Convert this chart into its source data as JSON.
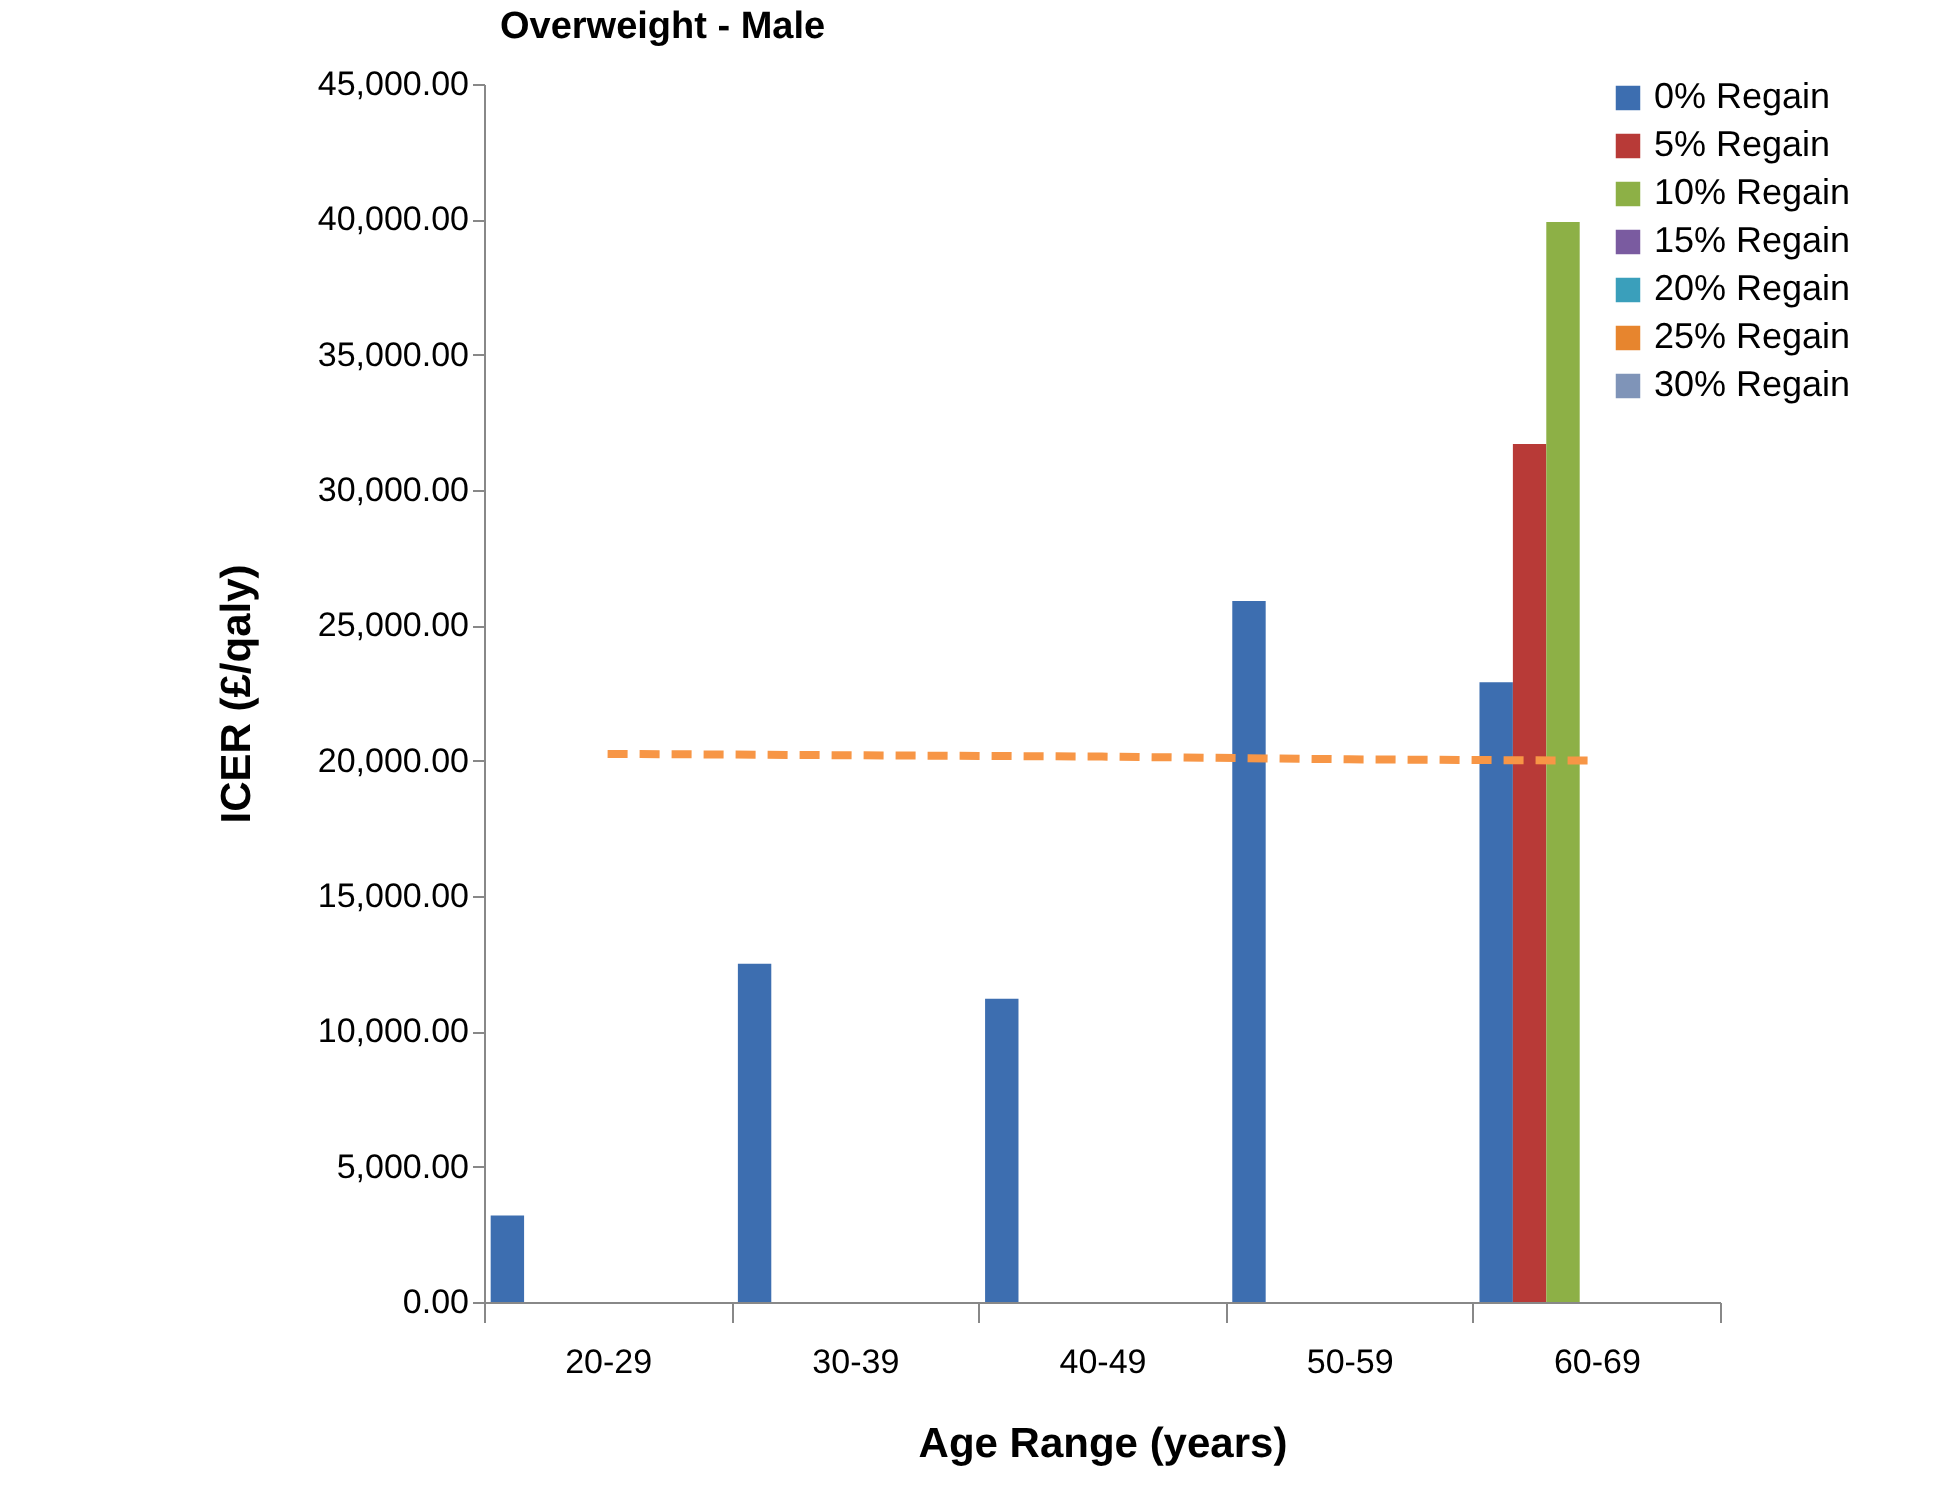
{
  "chart_data": {
    "type": "bar",
    "title": "Overweight - Male",
    "xlabel": "Age Range (years)",
    "ylabel": "ICER (£/qaly)",
    "categories": [
      "20-29",
      "30-39",
      "40-49",
      "50-59",
      "60-69"
    ],
    "series": [
      {
        "name": "0% Regain",
        "color": "#3d6eb0",
        "values": [
          3200,
          12500,
          11200,
          25900,
          22900
        ]
      },
      {
        "name": "5% Regain",
        "color": "#b83a37",
        "values": [
          null,
          null,
          null,
          null,
          31700
        ]
      },
      {
        "name": "10% Regain",
        "color": "#8db046",
        "values": [
          null,
          null,
          null,
          null,
          39900
        ]
      },
      {
        "name": "15% Regain",
        "color": "#7a5ba0",
        "values": [
          null,
          null,
          null,
          null,
          null
        ]
      },
      {
        "name": "20% Regain",
        "color": "#3a9fbb",
        "values": [
          null,
          null,
          null,
          null,
          null
        ]
      },
      {
        "name": "25% Regain",
        "color": "#e7852e",
        "values": [
          null,
          null,
          null,
          null,
          null
        ]
      },
      {
        "name": "30% Regain",
        "color": "#7f94b8",
        "values": [
          null,
          null,
          null,
          null,
          null
        ]
      },
      {
        "type": "line",
        "color": "#f79646",
        "line_style": "dashed",
        "values": [
          20250,
          20200,
          20150,
          20050,
          20000
        ]
      }
    ],
    "ylim": [
      0,
      45000
    ],
    "yticks": [
      {
        "value": 0,
        "label": "0.00"
      },
      {
        "value": 5000,
        "label": "5,000.00"
      },
      {
        "value": 10000,
        "label": "10,000.00"
      },
      {
        "value": 15000,
        "label": "15,000.00"
      },
      {
        "value": 20000,
        "label": "20,000.00"
      },
      {
        "value": 25000,
        "label": "25,000.00"
      },
      {
        "value": 30000,
        "label": "30,000.00"
      },
      {
        "value": 35000,
        "label": "35,000.00"
      },
      {
        "value": 40000,
        "label": "40,000.00"
      },
      {
        "value": 45000,
        "label": "45,000.00"
      }
    ],
    "grid": false,
    "legend": "top right"
  }
}
